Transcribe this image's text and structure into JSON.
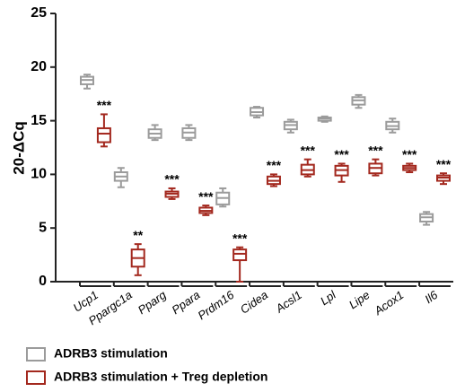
{
  "chart_data": {
    "type": "box",
    "y_label": "20-ΔCq",
    "categories": [
      "Ucp1",
      "Ppargc1a",
      "Pparg",
      "Ppara",
      "Prdm16",
      "Cidea",
      "Acsl1",
      "Lpl",
      "Lipe",
      "Acox1",
      "Il6"
    ],
    "ylim": [
      0,
      25
    ],
    "yticks": [
      0,
      5,
      10,
      15,
      20,
      25
    ],
    "series": [
      {
        "name": "ADRB3 stimulation",
        "color": "#9b9b9b",
        "min": [
          18.0,
          8.8,
          13.2,
          13.2,
          7.0,
          15.3,
          13.9,
          14.9,
          16.2,
          13.9,
          5.3
        ],
        "q1": [
          18.4,
          9.4,
          13.4,
          13.4,
          7.2,
          15.5,
          14.2,
          15.0,
          16.5,
          14.2,
          5.6
        ],
        "median": [
          18.8,
          9.8,
          13.8,
          13.9,
          7.8,
          15.8,
          14.6,
          15.2,
          16.9,
          14.5,
          6.0
        ],
        "q3": [
          19.1,
          10.2,
          14.2,
          14.3,
          8.3,
          16.2,
          14.9,
          15.3,
          17.2,
          14.9,
          6.3
        ],
        "max": [
          19.3,
          10.6,
          14.6,
          14.6,
          8.7,
          16.3,
          15.1,
          15.4,
          17.4,
          15.2,
          6.5
        ]
      },
      {
        "name": "ADRB3 stimulation + Treg depletion",
        "color": "#a3281e",
        "min": [
          12.6,
          0.6,
          7.7,
          6.2,
          0.0,
          8.9,
          9.8,
          9.3,
          9.9,
          10.2,
          9.1
        ],
        "q1": [
          13.0,
          1.4,
          7.9,
          6.4,
          2.0,
          9.1,
          10.0,
          9.9,
          10.1,
          10.4,
          9.4
        ],
        "median": [
          13.8,
          2.2,
          8.2,
          6.6,
          2.6,
          9.4,
          10.4,
          10.4,
          10.6,
          10.6,
          9.7
        ],
        "q3": [
          14.3,
          3.0,
          8.4,
          6.9,
          3.0,
          9.8,
          10.9,
          10.8,
          11.0,
          10.8,
          9.9
        ],
        "max": [
          15.6,
          3.5,
          8.7,
          7.1,
          3.2,
          10.0,
          11.4,
          11.0,
          11.4,
          11.0,
          10.1
        ],
        "annotations": [
          "***",
          "**",
          "***",
          "***",
          "***",
          "***",
          "***",
          "***",
          "***",
          "***",
          "***"
        ]
      }
    ]
  }
}
